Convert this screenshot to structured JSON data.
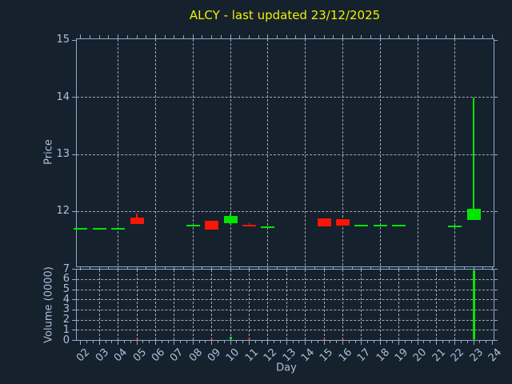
{
  "title": "ALCY - last updated 23/12/2025",
  "colors": {
    "background": "#16212e",
    "up": "#00e600",
    "down": "#fb1507",
    "grid": "#b9c0c9",
    "spine": "#8fabc9",
    "tick_label": "#a9c0db",
    "axis_label": "#a9c0db",
    "title": "#f0f000"
  },
  "chart_data": {
    "type": "candlestick",
    "title": "ALCY - last updated 23/12/2025",
    "xlabel": "Day",
    "xlim": [
      1.75,
      24.06
    ],
    "x_tick_labels": [
      "02",
      "03",
      "04",
      "05",
      "06",
      "07",
      "08",
      "09",
      "10",
      "11",
      "12",
      "13",
      "14",
      "15",
      "16",
      "17",
      "18",
      "19",
      "20",
      "21",
      "22",
      "23",
      "24"
    ],
    "x_tick_days": [
      2,
      3,
      4,
      5,
      6,
      7,
      8,
      9,
      10,
      11,
      12,
      13,
      14,
      15,
      16,
      17,
      18,
      19,
      20,
      21,
      22,
      23,
      24
    ],
    "panels": [
      {
        "name": "price",
        "ylabel": "Price",
        "yticks": [
          12,
          13,
          14,
          15
        ],
        "ylim": [
          11.04,
          15.03
        ],
        "grid_x_days": [
          4,
          6,
          8,
          10,
          12,
          14,
          16,
          18,
          20,
          22
        ],
        "grid_y_values": [
          12,
          13,
          14
        ],
        "legend": "none",
        "grid": true
      },
      {
        "name": "volume",
        "ylabel": "Volume (0000)",
        "yticks": [
          0,
          1,
          2,
          3,
          4,
          5,
          6,
          7
        ],
        "ylim": [
          0,
          7.05
        ],
        "grid_x_days": [
          3,
          4,
          5,
          6,
          7,
          8,
          9,
          10,
          11,
          12,
          13,
          14,
          15,
          16,
          17,
          18,
          19,
          20,
          21,
          22,
          23
        ],
        "grid_y_values": [
          1,
          2,
          3,
          4,
          5,
          6
        ],
        "legend": "none",
        "grid": true
      }
    ],
    "ohlcv": [
      {
        "day": 2,
        "open": 11.7,
        "high": 11.7,
        "low": 11.7,
        "close": 11.7,
        "volume": 0
      },
      {
        "day": 3,
        "open": 11.7,
        "high": 11.7,
        "low": 11.7,
        "close": 11.7,
        "volume": 0
      },
      {
        "day": 4,
        "open": 11.7,
        "high": 11.7,
        "low": 11.7,
        "close": 11.7,
        "volume": 0
      },
      {
        "day": 5,
        "open": 11.9,
        "high": 11.96,
        "low": 11.78,
        "close": 11.78,
        "volume": 0.2
      },
      {
        "day": 8,
        "open": 11.75,
        "high": 11.75,
        "low": 11.75,
        "close": 11.75,
        "volume": 0
      },
      {
        "day": 9,
        "open": 11.84,
        "high": 11.84,
        "low": 11.68,
        "close": 11.68,
        "volume": 0.15
      },
      {
        "day": 10,
        "open": 11.8,
        "high": 11.97,
        "low": 11.78,
        "close": 11.92,
        "volume": 0.35
      },
      {
        "day": 11,
        "open": 11.76,
        "high": 11.81,
        "low": 11.74,
        "close": 11.74,
        "volume": 0.25
      },
      {
        "day": 12,
        "open": 11.73,
        "high": 11.73,
        "low": 11.73,
        "close": 11.73,
        "volume": 0
      },
      {
        "day": 15,
        "open": 11.88,
        "high": 11.88,
        "low": 11.74,
        "close": 11.74,
        "volume": 0.1
      },
      {
        "day": 16,
        "open": 11.87,
        "high": 11.87,
        "low": 11.75,
        "close": 11.75,
        "volume": 0.1
      },
      {
        "day": 17,
        "open": 11.75,
        "high": 11.75,
        "low": 11.75,
        "close": 11.75,
        "volume": 0
      },
      {
        "day": 18,
        "open": 11.75,
        "high": 11.75,
        "low": 11.75,
        "close": 11.75,
        "volume": 0
      },
      {
        "day": 19,
        "open": 11.75,
        "high": 11.75,
        "low": 11.75,
        "close": 11.75,
        "volume": 0
      },
      {
        "day": 22,
        "open": 11.74,
        "high": 11.74,
        "low": 11.74,
        "close": 11.74,
        "volume": 0
      },
      {
        "day": 23,
        "open": 11.85,
        "high": 14.0,
        "low": 11.85,
        "close": 12.05,
        "volume": 6.9
      }
    ]
  }
}
